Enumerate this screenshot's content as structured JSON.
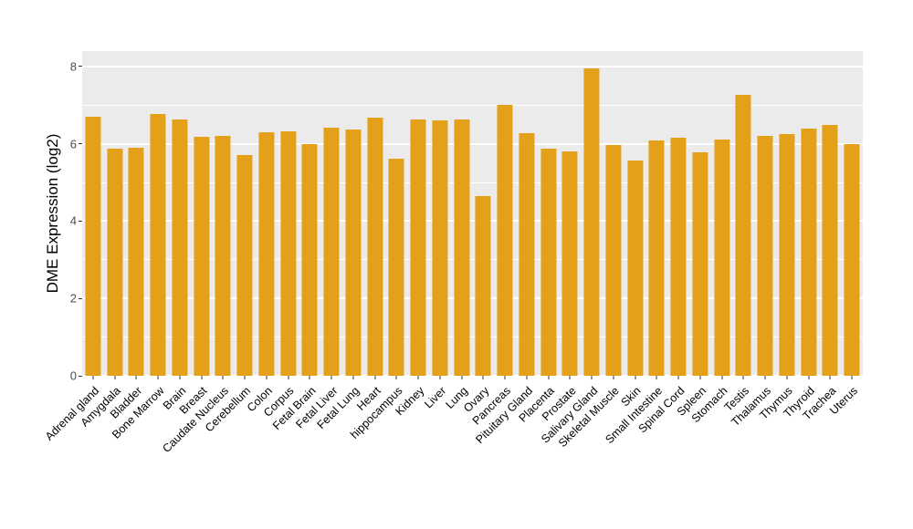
{
  "chart_data": {
    "type": "bar",
    "title": "",
    "xlabel": "",
    "ylabel": "DME Expression (log2)",
    "ylim": [
      0,
      8.4
    ],
    "yticks": [
      0,
      2,
      4,
      6,
      8
    ],
    "minor_gridlines": [
      1,
      3,
      5,
      7
    ],
    "grid": "on",
    "legend_position": "none",
    "bar_color": "#E3A018",
    "plot_bg": "#EBEBEB",
    "axis_text_color": "#4D4D4D",
    "categories": [
      "Adrenal gland",
      "Amygdala",
      "Bladder",
      "Bone Marrow",
      "Brain",
      "Breast",
      "Caudate Nucleus",
      "Cerebellum",
      "Colon",
      "Corpus",
      "Fetal Brain",
      "Fetal Liver",
      "Fetal Lung",
      "Heart",
      "hippocampus",
      "Kidney",
      "Liver",
      "Lung",
      "Ovary",
      "Pancreas",
      "Pituitary Gland",
      "Placenta",
      "Prostate",
      "Salivary Gland",
      "Skeletal Muscle",
      "Skin",
      "Small Intestine",
      "Spinal Cord",
      "Spleen",
      "Stomach",
      "Testis",
      "Thalamus",
      "Thymus",
      "Thyroid",
      "Trachea",
      "Uterus"
    ],
    "values": [
      6.7,
      5.87,
      5.9,
      6.77,
      6.63,
      6.18,
      6.2,
      5.7,
      6.3,
      6.32,
      5.99,
      6.41,
      6.37,
      6.67,
      5.61,
      6.63,
      6.6,
      6.63,
      4.66,
      7.0,
      6.27,
      5.87,
      5.8,
      7.95,
      5.96,
      5.56,
      6.08,
      6.15,
      5.78,
      6.1,
      7.27,
      6.2,
      6.25,
      6.39,
      6.5,
      5.99
    ]
  }
}
